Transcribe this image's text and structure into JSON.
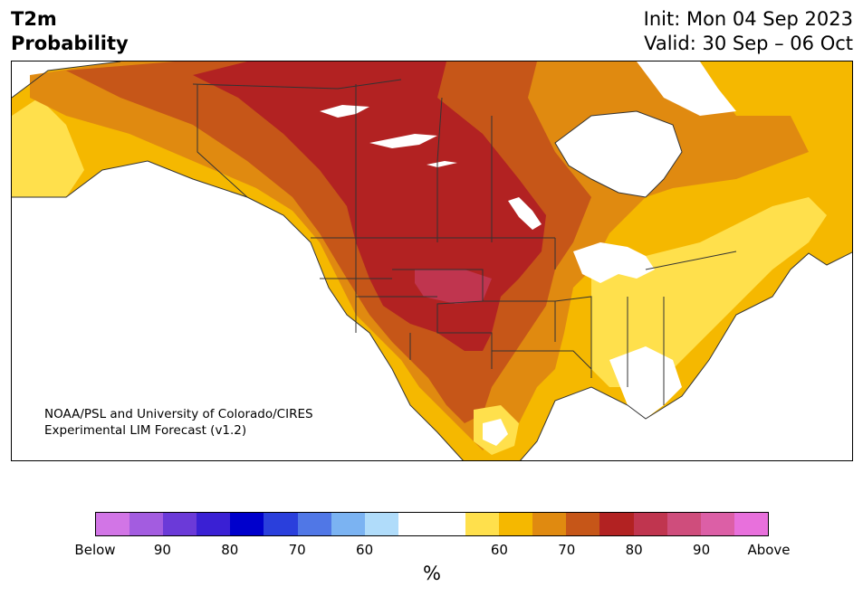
{
  "header": {
    "variable": "T2m",
    "subtitle": "Probability",
    "init": "Init: Mon 04 Sep 2023",
    "valid": "Valid: 30 Sep – 06 Oct"
  },
  "credit": {
    "line1": "NOAA/PSL and University of Colorado/CIRES",
    "line2": "Experimental LIM Forecast (v1.2)"
  },
  "colorbar": {
    "unit": "%",
    "colors": [
      "#d275e6",
      "#a35ce0",
      "#6b3ad8",
      "#3a20d4",
      "#0000cc",
      "#2a3fdc",
      "#5077e6",
      "#7bb3f2",
      "#b0dcfa",
      "#ffffff",
      "#ffffff",
      "#ffe04c",
      "#f5b800",
      "#e08a10",
      "#c65618",
      "#b22222",
      "#c0354f",
      "#cf4d7c",
      "#dc5fa6",
      "#e870dc"
    ],
    "ticks": [
      "Below",
      "90",
      "80",
      "70",
      "60",
      "60",
      "70",
      "80",
      "90",
      "Above"
    ]
  },
  "map": {
    "region": "North America",
    "colors": {
      "yellow": "#ffe04c",
      "gold": "#f5b800",
      "orange": "#e08a10",
      "dark_orange": "#c65618",
      "red": "#b22222",
      "crimson": "#c0354f",
      "water": "#ffffff",
      "border": "#333333"
    }
  }
}
